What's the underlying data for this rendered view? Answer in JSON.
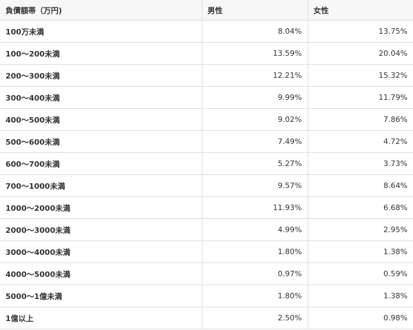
{
  "table": {
    "header": [
      "負債額帯（万円)",
      "男性",
      "女性"
    ],
    "rows": [
      [
        "100万未満",
        "8.04%",
        "13.75%"
      ],
      [
        "100〜200未満",
        "13.59%",
        "20.04%"
      ],
      [
        "200〜300未満",
        "12.21%",
        "15.32%"
      ],
      [
        "300〜400未満",
        "9.99%",
        "11.79%"
      ],
      [
        "400〜500未満",
        "9.02%",
        "7.86%"
      ],
      [
        "500〜600未満",
        "7.49%",
        "4.72%"
      ],
      [
        "600〜700未満",
        "5.27%",
        "3.73%"
      ],
      [
        "700〜1000未満",
        "9.57%",
        "8.64%"
      ],
      [
        "1000〜2000未満",
        "11.93%",
        "6.68%"
      ],
      [
        "2000〜3000未満",
        "4.99%",
        "2.95%"
      ],
      [
        "3000〜4000未満",
        "1.80%",
        "1.38%"
      ],
      [
        "4000〜5000未満",
        "0.97%",
        "0.59%"
      ],
      [
        "5000〜1億未満",
        "1.80%",
        "1.38%"
      ],
      [
        "1億以上",
        "2.50%",
        "0.98%"
      ]
    ]
  }
}
